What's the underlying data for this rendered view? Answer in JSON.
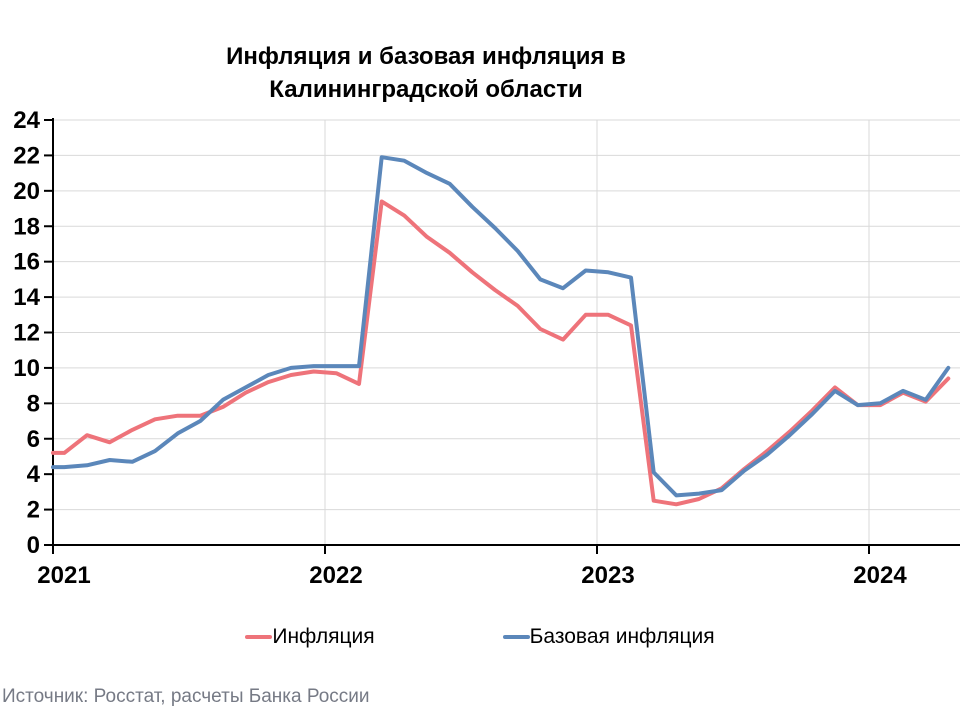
{
  "title": {
    "line1": "Инфляция и базовая инфляция в",
    "line2": "Калининградской области"
  },
  "source": "Источник: Росстат, расчеты Банка России",
  "legend": [
    {
      "label": "Инфляция",
      "color": "#EE737A"
    },
    {
      "label": "Базовая инфляция",
      "color": "#5B87BA"
    }
  ],
  "colors": {
    "inflation_line": "#EE737A",
    "core_inflation_line": "#5B87BA",
    "gridline": "#D9D9D9",
    "axis": "#000000",
    "source_text": "#767a85"
  },
  "chart_data": {
    "type": "line",
    "title": "Инфляция и базовая инфляция в Калининградской области",
    "x": [
      "2021-01",
      "2021-02",
      "2021-03",
      "2021-04",
      "2021-05",
      "2021-06",
      "2021-07",
      "2021-08",
      "2021-09",
      "2021-10",
      "2021-11",
      "2021-12",
      "2022-01",
      "2022-02",
      "2022-03",
      "2022-04",
      "2022-05",
      "2022-06",
      "2022-07",
      "2022-08",
      "2022-09",
      "2022-10",
      "2022-11",
      "2022-12",
      "2023-01",
      "2023-02",
      "2023-03",
      "2023-04",
      "2023-05",
      "2023-06",
      "2023-07",
      "2023-08",
      "2023-09",
      "2023-10",
      "2023-11",
      "2023-12",
      "2024-01",
      "2024-02",
      "2024-03",
      "2024-04"
    ],
    "series": [
      {
        "name": "Инфляция",
        "color": "#EE737A",
        "values": [
          5.2,
          6.2,
          5.8,
          6.5,
          7.1,
          7.3,
          7.3,
          7.8,
          8.6,
          9.2,
          9.6,
          9.8,
          9.7,
          9.1,
          19.4,
          18.6,
          17.4,
          16.5,
          15.4,
          14.4,
          13.5,
          12.2,
          11.6,
          13.0,
          13.0,
          12.4,
          2.5,
          2.3,
          2.6,
          3.2,
          4.3,
          5.3,
          6.4,
          7.6,
          8.9,
          7.9,
          7.9,
          8.6,
          8.1,
          9.4
        ]
      },
      {
        "name": "Базовая инфляция",
        "color": "#5B87BA",
        "values": [
          4.4,
          4.5,
          4.8,
          4.7,
          5.3,
          6.3,
          7.0,
          8.2,
          8.9,
          9.6,
          10.0,
          10.1,
          10.1,
          10.1,
          21.9,
          21.7,
          21.0,
          20.4,
          19.1,
          17.9,
          16.6,
          15.0,
          14.5,
          15.5,
          15.4,
          15.1,
          4.1,
          2.8,
          2.9,
          3.1,
          4.2,
          5.1,
          6.2,
          7.4,
          8.7,
          7.9,
          8.0,
          8.7,
          8.2,
          10.0
        ]
      }
    ],
    "ylim": [
      0,
      24
    ],
    "ytick_step": 2,
    "yticks": [
      0,
      2,
      4,
      6,
      8,
      10,
      12,
      14,
      16,
      18,
      20,
      22,
      24
    ],
    "xticks": [
      {
        "label": "2021",
        "index": 0
      },
      {
        "label": "2022",
        "index": 12
      },
      {
        "label": "2023",
        "index": 24
      },
      {
        "label": "2024",
        "index": 36
      }
    ],
    "grid": true,
    "legend_position": "bottom"
  }
}
